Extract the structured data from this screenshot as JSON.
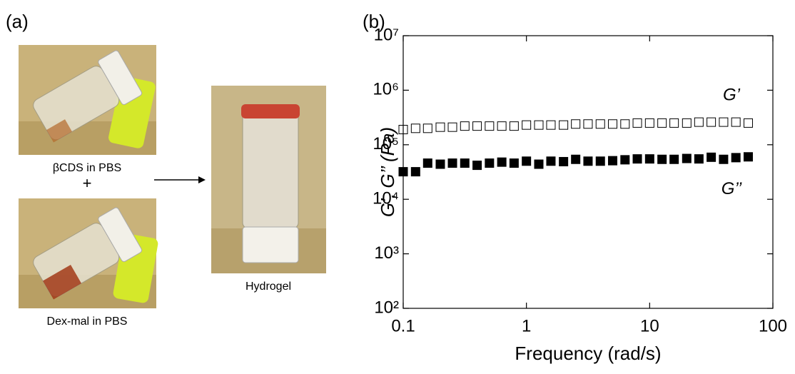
{
  "panel_a": {
    "label": "(a)",
    "photo_1_caption": "βCDS in PBS",
    "plus": "+",
    "photo_2_caption": "Dex-mal in PBS",
    "photo_3_caption": "Hydrogel"
  },
  "chart_data": {
    "type": "scatter",
    "panel_label": "(b)",
    "x_label": "Frequency (rad/s)",
    "y_label": "G’, G’’ (Pa)",
    "x_log": true,
    "y_log": true,
    "xlim": [
      0.1,
      100
    ],
    "ylim": [
      100,
      10000000
    ],
    "xticks": [
      0.1,
      1,
      10,
      100
    ],
    "yticks": [
      {
        "value": 100,
        "label": "10²"
      },
      {
        "value": 1000,
        "label": "10³"
      },
      {
        "value": 10000,
        "label": "10⁴"
      },
      {
        "value": 100000,
        "label": "10⁵"
      },
      {
        "value": 1000000,
        "label": "10⁶"
      },
      {
        "value": 10000000,
        "label": "10⁷"
      }
    ],
    "x": [
      0.1,
      0.126,
      0.158,
      0.2,
      0.251,
      0.316,
      0.398,
      0.501,
      0.631,
      0.794,
      1,
      1.26,
      1.58,
      2,
      2.51,
      3.16,
      3.98,
      5.01,
      6.31,
      7.94,
      10,
      12.6,
      15.8,
      20,
      25.1,
      31.6,
      39.8,
      50.1,
      63.1
    ],
    "series": [
      {
        "name": "G’",
        "color": "#000000",
        "filled": false,
        "values": [
          190000,
          200000,
          200000,
          210000,
          210000,
          220000,
          220000,
          220000,
          220000,
          220000,
          230000,
          230000,
          230000,
          230000,
          240000,
          240000,
          240000,
          240000,
          240000,
          250000,
          250000,
          250000,
          250000,
          250000,
          260000,
          260000,
          260000,
          260000,
          250000
        ]
      },
      {
        "name": "G’’",
        "color": "#000000",
        "filled": true,
        "values": [
          32000,
          32000,
          46000,
          44000,
          46000,
          46000,
          42000,
          46000,
          48000,
          46000,
          50000,
          44000,
          50000,
          49000,
          54000,
          50000,
          50000,
          51000,
          53000,
          55000,
          55000,
          54000,
          54000,
          56000,
          55000,
          59000,
          54000,
          58000,
          60000
        ]
      }
    ]
  }
}
